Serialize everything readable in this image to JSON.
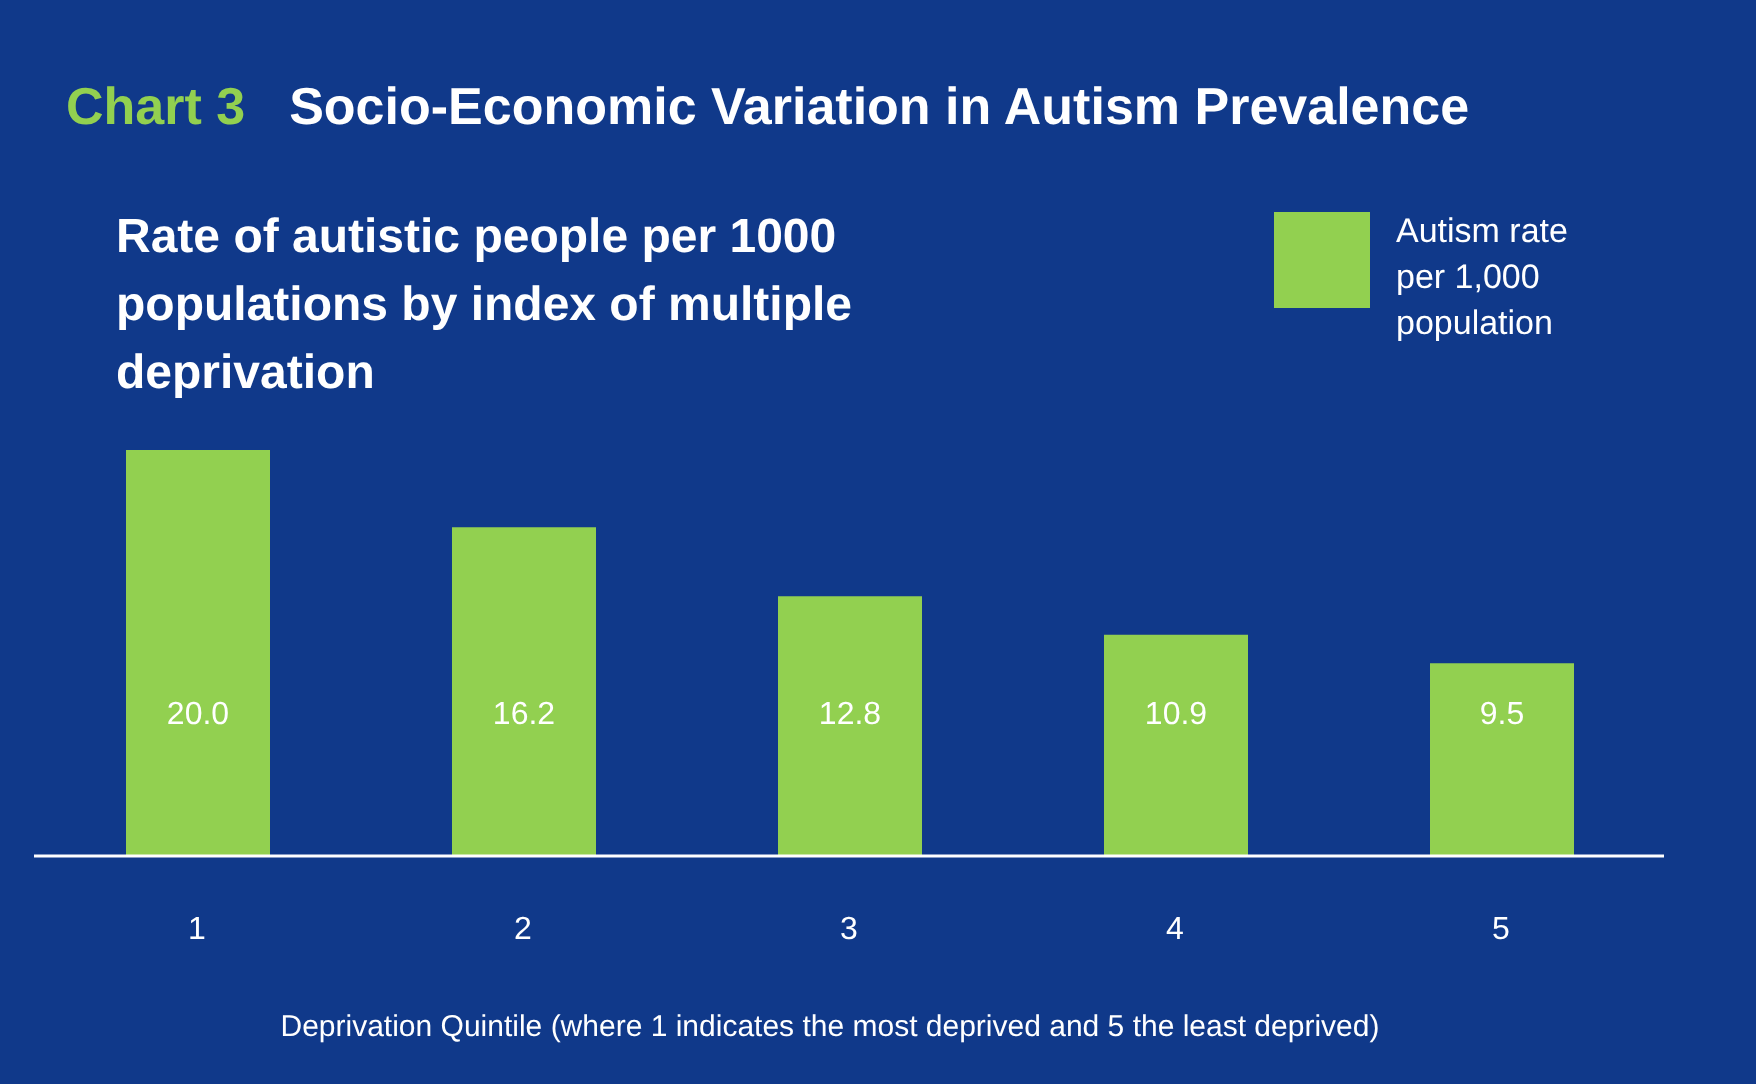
{
  "chart_data": {
    "type": "bar",
    "title": "Chart 3",
    "subtitle": "Socio-Economic Variation in Autism Prevalence",
    "annotations": [
      "Rate of autistic people per 1000 populations by index of multiple deprivation"
    ],
    "xlabel": "Deprivation Quintile (where 1 indicates the most deprived and 5 the least deprived)",
    "categories": [
      "1",
      "2",
      "3",
      "4",
      "5"
    ],
    "series": [
      {
        "name": "Autism rate per 1,000 population",
        "color": "#92d050",
        "values": [
          20.0,
          16.2,
          12.8,
          10.9,
          9.5
        ],
        "value_labels": [
          "20.0",
          "16.2",
          "12.8",
          "10.9",
          "9.5"
        ]
      }
    ],
    "legend": "top right",
    "tick_labels": "x"
  }
}
